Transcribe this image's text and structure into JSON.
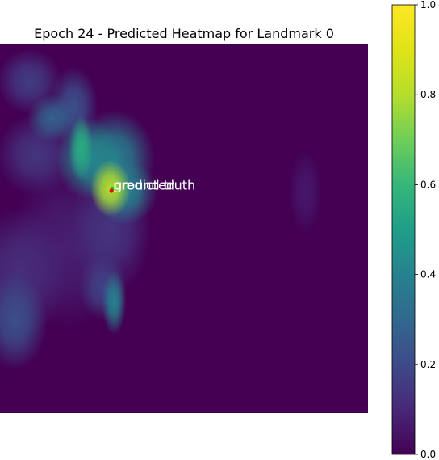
{
  "chart_data": {
    "type": "heatmap",
    "title": "Epoch 24 - Predicted Heatmap for Landmark 0",
    "colormap": "viridis",
    "axes": "off",
    "background_color": "#440154",
    "colorbar": {
      "min": 0.0,
      "max": 1.0,
      "ticks": [
        0.0,
        0.2,
        0.4,
        0.6,
        0.8,
        1.0
      ],
      "tick_labels": [
        "0.0",
        "0.2",
        "0.4",
        "0.6",
        "0.8",
        "1.0"
      ]
    },
    "hotspots": [
      {
        "col": 0.3,
        "row": 0.39,
        "sx": 0.025,
        "sy": 0.035,
        "value": 0.8
      },
      {
        "col": 0.22,
        "row": 0.28,
        "sx": 0.015,
        "sy": 0.04,
        "value": 0.55
      },
      {
        "col": 0.24,
        "row": 0.31,
        "sx": 0.04,
        "sy": 0.05,
        "value": 0.42
      },
      {
        "col": 0.31,
        "row": 0.31,
        "sx": 0.05,
        "sy": 0.06,
        "value": 0.4
      },
      {
        "col": 0.34,
        "row": 0.4,
        "sx": 0.04,
        "sy": 0.04,
        "value": 0.4
      },
      {
        "col": 0.14,
        "row": 0.2,
        "sx": 0.03,
        "sy": 0.03,
        "value": 0.28
      },
      {
        "col": 0.08,
        "row": 0.1,
        "sx": 0.04,
        "sy": 0.04,
        "value": 0.16
      },
      {
        "col": 0.2,
        "row": 0.17,
        "sx": 0.03,
        "sy": 0.05,
        "value": 0.22
      },
      {
        "col": 0.1,
        "row": 0.3,
        "sx": 0.05,
        "sy": 0.05,
        "value": 0.14
      },
      {
        "col": 0.31,
        "row": 0.7,
        "sx": 0.015,
        "sy": 0.04,
        "value": 0.4
      },
      {
        "col": 0.28,
        "row": 0.66,
        "sx": 0.03,
        "sy": 0.04,
        "value": 0.18
      },
      {
        "col": 0.3,
        "row": 0.5,
        "sx": 0.05,
        "sy": 0.08,
        "value": 0.14
      },
      {
        "col": 0.04,
        "row": 0.75,
        "sx": 0.04,
        "sy": 0.06,
        "value": 0.22
      },
      {
        "col": 0.05,
        "row": 0.62,
        "sx": 0.06,
        "sy": 0.08,
        "value": 0.12
      },
      {
        "col": 0.18,
        "row": 0.55,
        "sx": 0.07,
        "sy": 0.1,
        "value": 0.08
      },
      {
        "col": 0.83,
        "row": 0.4,
        "sx": 0.02,
        "sy": 0.05,
        "value": 0.06
      }
    ],
    "markers": [
      {
        "label": "ground truth",
        "col": 0.305,
        "row": 0.391,
        "color": "#00cc00"
      },
      {
        "label": "predicted",
        "col": 0.303,
        "row": 0.397,
        "color": "#ff0000"
      }
    ]
  }
}
